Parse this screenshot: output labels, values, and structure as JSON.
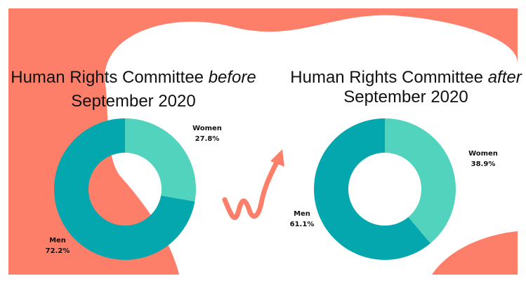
{
  "chart_data": [
    {
      "type": "pie",
      "donut": true,
      "title": {
        "lead": "Human Rights Committee",
        "emphasis": "before",
        "tail": "September 2020"
      },
      "categories": [
        "Women",
        "Men"
      ],
      "values": [
        27.8,
        72.2
      ],
      "value_labels": [
        "27.8%",
        "72.2%"
      ],
      "colors": [
        "#52d3bd",
        "#04a7ae"
      ]
    },
    {
      "type": "pie",
      "donut": true,
      "title": {
        "lead": "Human Rights Committee",
        "emphasis": "after",
        "tail": "September 2020"
      },
      "categories": [
        "Women",
        "Men"
      ],
      "values": [
        38.9,
        61.1
      ],
      "value_labels": [
        "38.9%",
        "61.1%"
      ],
      "colors": [
        "#52d3bd",
        "#04a7ae"
      ]
    }
  ]
}
